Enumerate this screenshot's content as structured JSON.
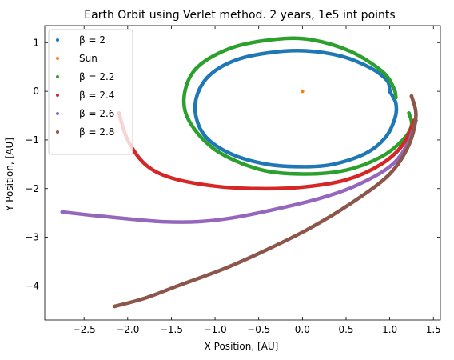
{
  "chart_data": {
    "type": "scatter",
    "title": "Earth Orbit using Verlet method. 2 years, 1e5 int points",
    "xlabel": "X Position, [AU]",
    "ylabel": "Y Position, [AU]",
    "xlim": [
      -2.95,
      1.58
    ],
    "ylim": [
      -4.7,
      1.35
    ],
    "xticks": [
      -2.5,
      -2.0,
      -1.5,
      -1.0,
      -0.5,
      0.0,
      0.5,
      1.0,
      1.5
    ],
    "xtick_labels": [
      "−2.5",
      "−2.0",
      "−1.5",
      "−1.0",
      "−0.5",
      "0.0",
      "0.5",
      "1.0",
      "1.5"
    ],
    "yticks": [
      1,
      0,
      -1,
      -2,
      -3,
      -4
    ],
    "ytick_labels": [
      "1",
      "0",
      "−1",
      "−2",
      "−3",
      "−4"
    ],
    "grid": false,
    "legend_position": "top-left",
    "series": [
      {
        "name": "β = 2",
        "legend_label": "β = 2",
        "color": "#1f77b4",
        "kind": "closed-orbit",
        "points": [
          [
            1.0,
            0.0
          ],
          [
            1.07,
            -0.25
          ],
          [
            1.06,
            -0.55
          ],
          [
            0.95,
            -0.95
          ],
          [
            0.72,
            -1.28
          ],
          [
            0.35,
            -1.5
          ],
          [
            0.0,
            -1.55
          ],
          [
            -0.4,
            -1.5
          ],
          [
            -0.8,
            -1.3
          ],
          [
            -1.1,
            -0.95
          ],
          [
            -1.22,
            -0.5
          ],
          [
            -1.2,
            -0.05
          ],
          [
            -1.05,
            0.35
          ],
          [
            -0.75,
            0.65
          ],
          [
            -0.35,
            0.8
          ],
          [
            0.05,
            0.83
          ],
          [
            0.45,
            0.72
          ],
          [
            0.78,
            0.48
          ],
          [
            0.97,
            0.22
          ],
          [
            1.0,
            0.0
          ]
        ]
      },
      {
        "name": "Sun",
        "legend_label": "Sun",
        "color": "#ff7f0e",
        "kind": "point",
        "points": [
          [
            0.0,
            0.0
          ]
        ]
      },
      {
        "name": "β = 2.2",
        "legend_label": "β = 2.2",
        "color": "#2ca02c",
        "kind": "orbit",
        "points": [
          [
            1.07,
            -0.13
          ],
          [
            1.05,
            0.05
          ],
          [
            0.92,
            0.4
          ],
          [
            0.55,
            0.82
          ],
          [
            0.1,
            1.06
          ],
          [
            -0.3,
            1.07
          ],
          [
            -0.8,
            0.9
          ],
          [
            -1.2,
            0.5
          ],
          [
            -1.35,
            -0.05
          ],
          [
            -1.3,
            -0.6
          ],
          [
            -1.0,
            -1.2
          ],
          [
            -0.5,
            -1.6
          ],
          [
            0.0,
            -1.7
          ],
          [
            0.5,
            -1.62
          ],
          [
            0.9,
            -1.35
          ],
          [
            1.15,
            -1.0
          ],
          [
            1.25,
            -0.7
          ],
          [
            1.22,
            -0.45
          ]
        ]
      },
      {
        "name": "β = 2.4",
        "legend_label": "β = 2.4",
        "color": "#d62728",
        "kind": "orbit",
        "points": [
          [
            1.28,
            -0.6
          ],
          [
            1.15,
            -1.1
          ],
          [
            0.9,
            -1.5
          ],
          [
            0.5,
            -1.82
          ],
          [
            0.0,
            -1.97
          ],
          [
            -0.5,
            -2.0
          ],
          [
            -1.0,
            -1.95
          ],
          [
            -1.5,
            -1.78
          ],
          [
            -1.8,
            -1.5
          ],
          [
            -2.0,
            -1.0
          ],
          [
            -2.1,
            -0.45
          ]
        ]
      },
      {
        "name": "β = 2.6",
        "legend_label": "β = 2.6",
        "color": "#9467bd",
        "kind": "orbit",
        "points": [
          [
            1.3,
            -0.6
          ],
          [
            1.2,
            -1.1
          ],
          [
            1.0,
            -1.55
          ],
          [
            0.6,
            -1.95
          ],
          [
            0.2,
            -2.2
          ],
          [
            -0.3,
            -2.42
          ],
          [
            -0.8,
            -2.6
          ],
          [
            -1.2,
            -2.68
          ],
          [
            -1.6,
            -2.68
          ],
          [
            -2.0,
            -2.62
          ],
          [
            -2.4,
            -2.55
          ],
          [
            -2.75,
            -2.48
          ]
        ]
      },
      {
        "name": "β = 2.8",
        "legend_label": "β = 2.8",
        "color": "#8c564b",
        "kind": "orbit",
        "points": [
          [
            1.25,
            -0.1
          ],
          [
            1.3,
            -0.5
          ],
          [
            1.22,
            -1.1
          ],
          [
            1.0,
            -1.7
          ],
          [
            0.6,
            -2.25
          ],
          [
            0.1,
            -2.8
          ],
          [
            -0.4,
            -3.25
          ],
          [
            -0.9,
            -3.65
          ],
          [
            -1.4,
            -3.98
          ],
          [
            -1.8,
            -4.25
          ],
          [
            -2.15,
            -4.42
          ]
        ]
      }
    ]
  }
}
